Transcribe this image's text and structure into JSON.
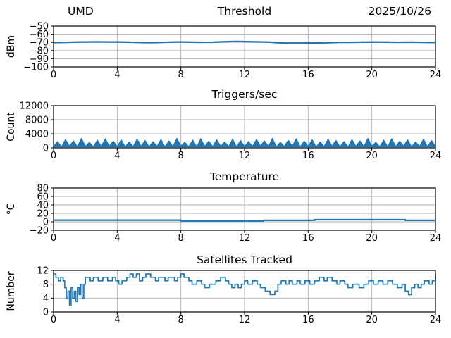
{
  "figure": {
    "station": "UMD",
    "date": "2025/10/26",
    "line_color": "#1f77b4",
    "band_color": "#1f77b4",
    "grid_color": "#b0b0b0",
    "frame_color": "#000000",
    "text_color": "#000000",
    "background": "#ffffff"
  },
  "chart_data": [
    {
      "type": "line",
      "title": "Threshold",
      "title_left": "UMD",
      "title_right": "2025/10/26",
      "ylabel": "dBm",
      "xlabel": "",
      "xlim": [
        0,
        24
      ],
      "ylim": [
        -100,
        -50
      ],
      "xticks": [
        0,
        4,
        8,
        12,
        16,
        20,
        24
      ],
      "yticks": [
        -50,
        -60,
        -70,
        -80,
        -90,
        -100
      ],
      "grid": true,
      "legend": false,
      "draw": "band-line",
      "band": 0.9,
      "x_start": 0,
      "x_step": 0.5,
      "values": [
        -70.3,
        -70.1,
        -69.8,
        -69.6,
        -69.5,
        -69.4,
        -69.4,
        -69.5,
        -69.5,
        -69.7,
        -69.9,
        -70.2,
        -70.3,
        -70.2,
        -69.9,
        -69.6,
        -69.5,
        -69.6,
        -69.8,
        -69.9,
        -69.8,
        -69.4,
        -69.0,
        -68.8,
        -69.0,
        -69.3,
        -69.4,
        -69.6,
        -70.3,
        -70.8,
        -71.0,
        -71.0,
        -70.9,
        -70.7,
        -70.5,
        -70.3,
        -70.0,
        -70.0,
        -69.8,
        -69.7,
        -69.6,
        -69.6,
        -69.7,
        -69.9,
        -69.8,
        -69.7,
        -69.9,
        -70.1,
        -70.1
      ]
    },
    {
      "type": "area",
      "title": "Triggers/sec",
      "ylabel": "Count",
      "xlabel": "",
      "xlim": [
        0,
        24
      ],
      "ylim": [
        0,
        12000
      ],
      "xticks": [
        0,
        4,
        8,
        12,
        16,
        20,
        24
      ],
      "yticks": [
        0,
        4000,
        8000,
        12000
      ],
      "grid": true,
      "legend": false,
      "draw": "noisy-area",
      "baseline": 300,
      "x_start": 0,
      "x_step": 0.25,
      "values": [
        400,
        1800,
        300,
        2400,
        500,
        2000,
        350,
        2700,
        450,
        1600,
        300,
        2200,
        400,
        2600,
        550,
        1900,
        350,
        2300,
        300,
        1700,
        400,
        2500,
        500,
        2100,
        350,
        1800,
        450,
        2400,
        300,
        2000,
        400,
        2700,
        550,
        1600,
        350,
        2200,
        300,
        2600,
        450,
        1900,
        400,
        2300,
        500,
        1700,
        350,
        2500,
        300,
        2100,
        400,
        1800,
        450,
        2400,
        550,
        2000,
        350,
        2700,
        300,
        1600,
        400,
        2200,
        500,
        2600,
        350,
        1900,
        450,
        2300,
        300,
        1700,
        400,
        2500,
        550,
        2100,
        350,
        1800,
        300,
        2400,
        450,
        2000,
        400,
        2700,
        500,
        1600,
        350,
        2200,
        300,
        2600,
        400,
        1900,
        550,
        2300,
        350,
        1700,
        450,
        2500,
        300,
        2100,
        400
      ]
    },
    {
      "type": "line",
      "title": "Temperature",
      "ylabel": "°C",
      "xlabel": "",
      "xlim": [
        0,
        24
      ],
      "ylim": [
        -20,
        80
      ],
      "xticks": [
        0,
        4,
        8,
        12,
        16,
        20,
        24
      ],
      "yticks": [
        -20,
        0,
        20,
        40,
        60,
        80
      ],
      "grid": true,
      "legend": false,
      "draw": "line",
      "x": [
        0,
        8.0,
        8.0,
        13.2,
        13.2,
        16.4,
        16.4,
        22.1,
        22.1,
        24
      ],
      "y": [
        4,
        4,
        2,
        2,
        3.5,
        3.5,
        5,
        5,
        3.5,
        3.5
      ]
    },
    {
      "type": "step",
      "title": "Satellites Tracked",
      "ylabel": "Number",
      "xlabel": "",
      "xlim": [
        0,
        24
      ],
      "ylim": [
        0,
        12
      ],
      "xticks": [
        0,
        4,
        8,
        12,
        16,
        20,
        24
      ],
      "yticks": [
        0,
        4,
        8,
        12
      ],
      "grid": true,
      "legend": false,
      "draw": "step",
      "x": [
        0,
        0.15,
        0.3,
        0.45,
        0.6,
        0.7,
        0.8,
        0.9,
        1.0,
        1.1,
        1.2,
        1.3,
        1.4,
        1.5,
        1.6,
        1.7,
        1.8,
        1.9,
        2.0,
        2.3,
        2.5,
        2.8,
        3.1,
        3.4,
        3.7,
        3.9,
        4.1,
        4.3,
        4.6,
        4.8,
        5.0,
        5.2,
        5.4,
        5.6,
        5.8,
        6.1,
        6.4,
        6.6,
        7.0,
        7.2,
        7.6,
        7.8,
        8.0,
        8.2,
        8.5,
        8.7,
        9.0,
        9.3,
        9.5,
        9.8,
        10.2,
        10.5,
        10.8,
        11.0,
        11.2,
        11.4,
        11.6,
        11.8,
        12.0,
        12.2,
        12.5,
        12.8,
        13.0,
        13.3,
        13.6,
        13.9,
        14.1,
        14.3,
        14.6,
        14.8,
        15.0,
        15.3,
        15.5,
        15.8,
        16.1,
        16.4,
        16.7,
        17.0,
        17.2,
        17.5,
        17.8,
        18.0,
        18.3,
        18.5,
        18.8,
        19.2,
        19.5,
        19.8,
        20.1,
        20.4,
        20.7,
        21.0,
        21.3,
        21.6,
        21.9,
        22.1,
        22.3,
        22.5,
        22.7,
        22.9,
        23.1,
        23.3,
        23.6,
        23.8,
        24
      ],
      "y": [
        11,
        10,
        9,
        10,
        9,
        7,
        4,
        6,
        2,
        7,
        4,
        6,
        3,
        7,
        5,
        8,
        4,
        8,
        10,
        9,
        10,
        9,
        10,
        9,
        10,
        9,
        8,
        9,
        10,
        11,
        10,
        11,
        9,
        10,
        11,
        10,
        9,
        10,
        9,
        10,
        9,
        10,
        11,
        10,
        9,
        8,
        9,
        8,
        7,
        8,
        9,
        10,
        9,
        8,
        7,
        8,
        7,
        8,
        9,
        8,
        9,
        8,
        7,
        6,
        5,
        6,
        8,
        9,
        8,
        9,
        8,
        9,
        8,
        9,
        8,
        9,
        10,
        9,
        10,
        9,
        8,
        9,
        8,
        7,
        8,
        7,
        8,
        9,
        8,
        9,
        8,
        9,
        8,
        7,
        8,
        6,
        5,
        7,
        8,
        7,
        8,
        9,
        8,
        9,
        11
      ]
    }
  ]
}
